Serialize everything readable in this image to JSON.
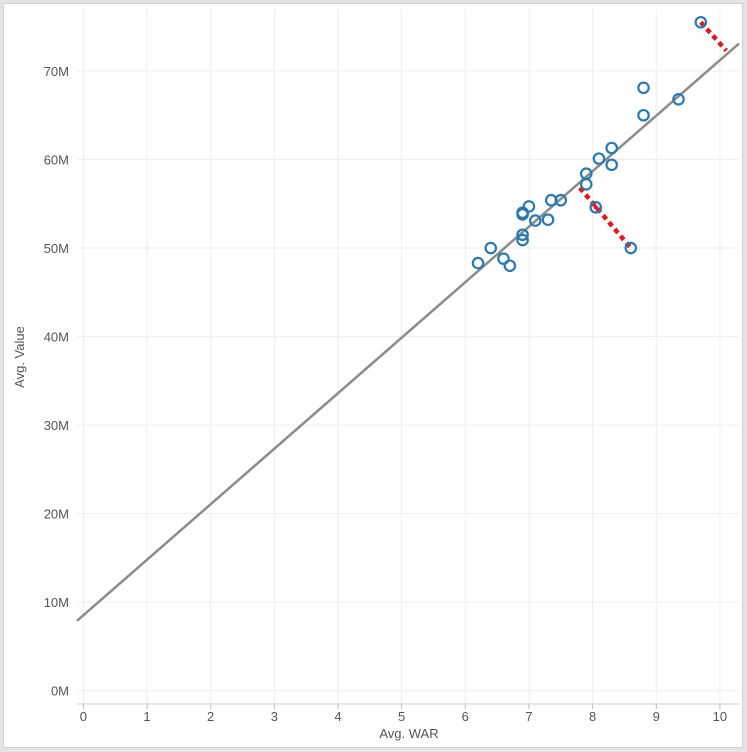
{
  "chart_data": {
    "type": "scatter",
    "xlabel": "Avg. WAR",
    "ylabel": "Avg. Value",
    "xlim": [
      -0.1,
      10.3
    ],
    "ylim": [
      -1.5,
      77
    ],
    "x_ticks": [
      "0",
      "1",
      "2",
      "3",
      "4",
      "5",
      "6",
      "7",
      "8",
      "9",
      "10"
    ],
    "x_tick_values": [
      0,
      1,
      2,
      3,
      4,
      5,
      6,
      7,
      8,
      9,
      10
    ],
    "y_ticks": [
      "0M",
      "10M",
      "20M",
      "30M",
      "40M",
      "50M",
      "60M",
      "70M"
    ],
    "y_tick_values": [
      0,
      10,
      20,
      30,
      40,
      50,
      60,
      70
    ],
    "grid": true,
    "points": [
      {
        "x": 6.2,
        "y": 48.3
      },
      {
        "x": 6.4,
        "y": 50.0
      },
      {
        "x": 6.6,
        "y": 48.8
      },
      {
        "x": 6.7,
        "y": 48.0
      },
      {
        "x": 6.9,
        "y": 50.9
      },
      {
        "x": 6.9,
        "y": 51.5
      },
      {
        "x": 6.9,
        "y": 53.8
      },
      {
        "x": 6.9,
        "y": 54.0
      },
      {
        "x": 7.0,
        "y": 54.7
      },
      {
        "x": 7.1,
        "y": 53.1
      },
      {
        "x": 7.3,
        "y": 53.2
      },
      {
        "x": 7.35,
        "y": 55.4
      },
      {
        "x": 7.5,
        "y": 55.4
      },
      {
        "x": 7.9,
        "y": 57.2
      },
      {
        "x": 7.9,
        "y": 58.4
      },
      {
        "x": 8.05,
        "y": 54.6
      },
      {
        "x": 8.1,
        "y": 60.1
      },
      {
        "x": 8.3,
        "y": 59.4
      },
      {
        "x": 8.3,
        "y": 61.3
      },
      {
        "x": 8.6,
        "y": 50.0
      },
      {
        "x": 8.8,
        "y": 65.0
      },
      {
        "x": 8.8,
        "y": 68.1
      },
      {
        "x": 9.35,
        "y": 66.8
      },
      {
        "x": 9.7,
        "y": 75.5
      }
    ],
    "trend_line": {
      "x": [
        -0.1,
        10.3
      ],
      "y": [
        7.9,
        73.1
      ]
    },
    "highlighted_point": {
      "x": 8.05,
      "y": 54.6
    },
    "residual_lines": [
      {
        "x": [
          7.8,
          8.6
        ],
        "y": [
          56.8,
          50.0
        ]
      },
      {
        "x": [
          9.7,
          10.1
        ],
        "y": [
          75.5,
          72.3
        ]
      }
    ],
    "colors": {
      "marker": "#2a7ab0",
      "trend": "#8c8c8c",
      "residual": "#e8141b",
      "grid": "#eeeeee"
    }
  }
}
